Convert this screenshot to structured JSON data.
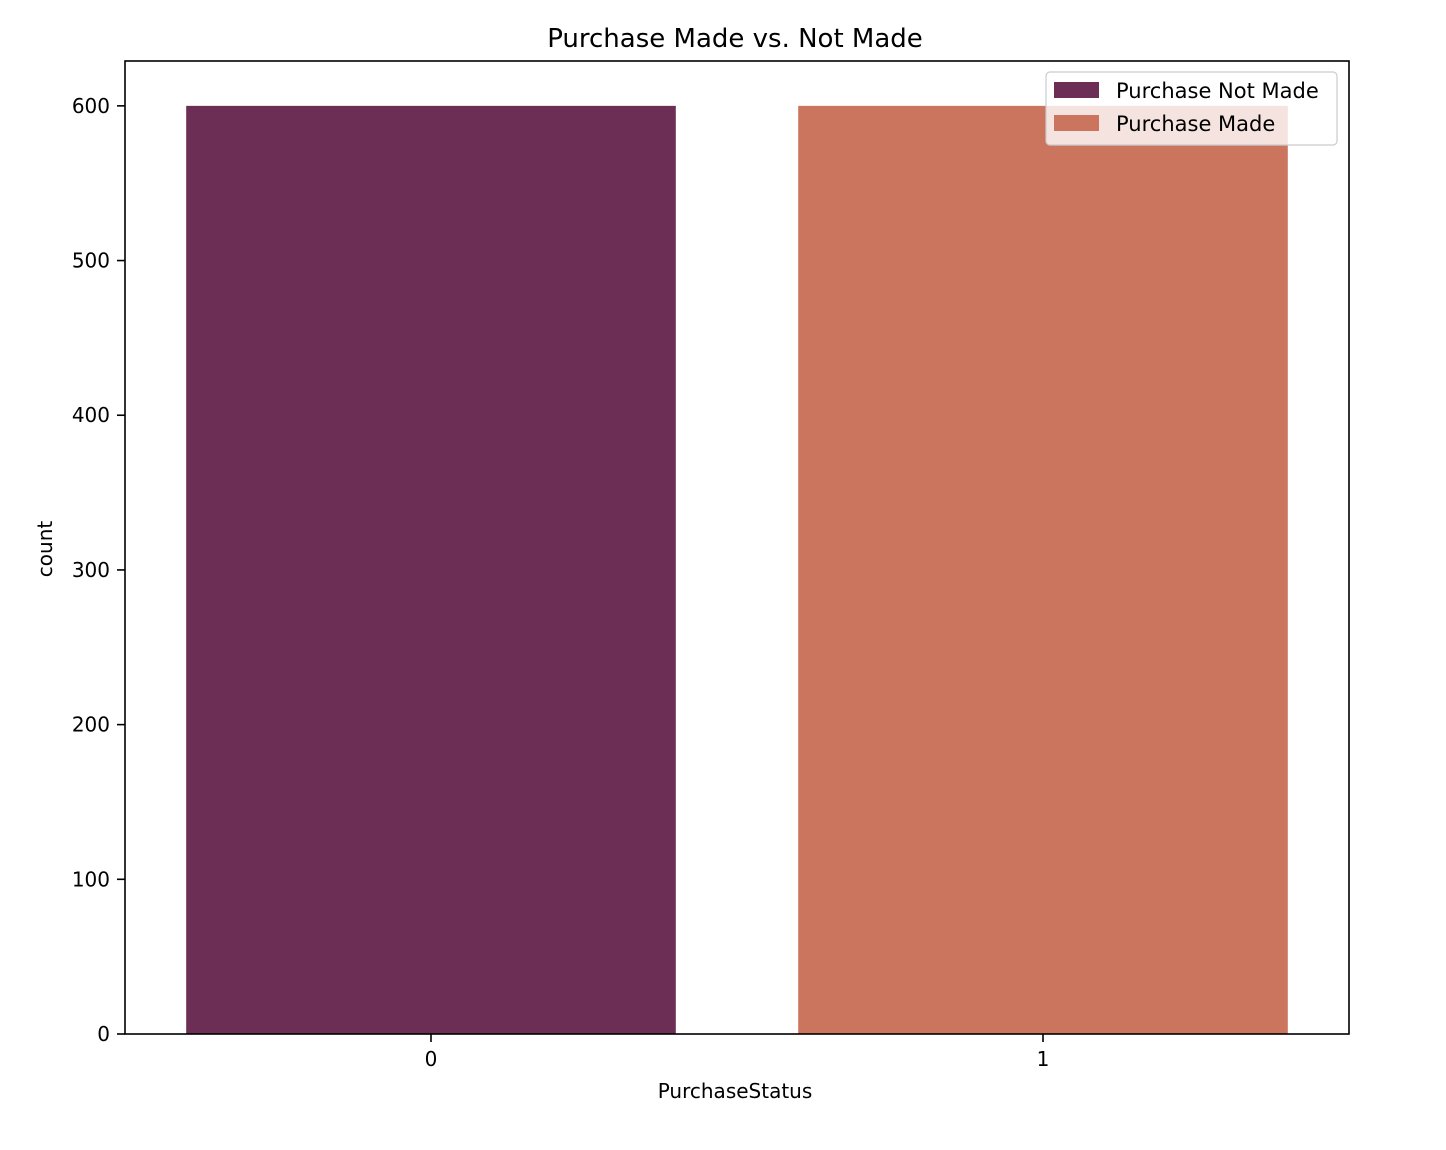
{
  "chart_data": {
    "type": "bar",
    "title": "Purchase Made vs. Not Made",
    "xlabel": "PurchaseStatus",
    "ylabel": "count",
    "categories": [
      "0",
      "1"
    ],
    "values": [
      600,
      600
    ],
    "colors": [
      "#6c2e55",
      "#cb745e"
    ],
    "ylim": [
      0,
      629
    ],
    "yticks": [
      0,
      100,
      200,
      300,
      400,
      500,
      600
    ],
    "grid": false,
    "legend": {
      "placement": "top-right",
      "entries": [
        {
          "label": "Purchase Not Made",
          "color": "#6c2e55"
        },
        {
          "label": "Purchase Made",
          "color": "#cb745e"
        }
      ]
    }
  }
}
